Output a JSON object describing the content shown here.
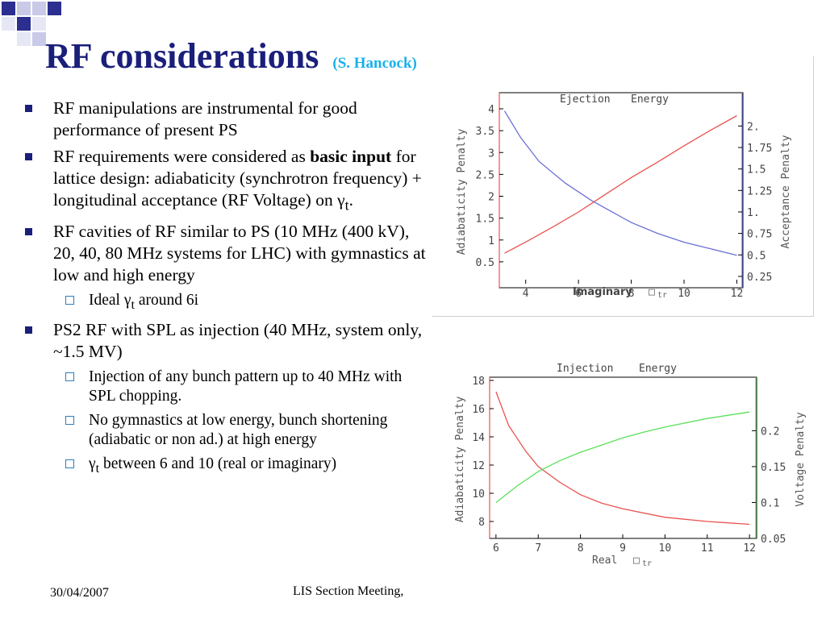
{
  "slide": {
    "title": "RF considerations",
    "title_note": "(S. Hancock)",
    "bullets": [
      {
        "text": "RF manipulations are instrumental for good performance of present PS"
      },
      {
        "pre": "RF requirements were considered as ",
        "bold": "basic input",
        "post": " for lattice design: adiabaticity (synchrotron frequency) + longitudinal acceptance (RF Voltage) on γ",
        "sub": "t",
        "tail": "."
      },
      {
        "text": "RF cavities of RF similar to PS (10 MHz (400 kV), 20, 40, 80 MHz systems for LHC) with gymnastics at low and high energy"
      },
      {
        "pre": "Ideal γ",
        "sub": "t",
        "post": " around 6i"
      },
      {
        "text": "PS2 RF with SPL as injection (40 MHz, system only, ~1.5 MV)"
      },
      {
        "text": "Injection of any bunch pattern up to 40 MHz with SPL chopping."
      },
      {
        "text": "No gymnastics at low energy, bunch shortening (adiabatic or non ad.) at high energy"
      },
      {
        "pre": "γ",
        "sub": "t",
        "post": " between 6 and 10 (real or imaginary)"
      }
    ]
  },
  "footer": {
    "date": "30/04/2007",
    "event": "LIS Section Meeting,"
  },
  "colors": {
    "title": "#1a1f7a",
    "subtitle": "#1ab0e8",
    "red_series": "#e8524f",
    "blue_series": "#6a6fd6",
    "green_series": "#5ae05a"
  },
  "chart_data": [
    {
      "type": "line",
      "title_words": [
        "Ejection",
        "Energy"
      ],
      "xlabel": "Imaginary",
      "xlabel_symbol": "□",
      "xlabel_sub": "tr",
      "ylabel_left": "Adiabaticity Penalty",
      "ylabel_right": "Acceptance Penalty",
      "xlim": [
        3,
        12.2
      ],
      "ylim_left": [
        0,
        4
      ],
      "ylim_right": [
        0.165,
        2.2
      ],
      "x_ticks": [
        4,
        6,
        8,
        10,
        12
      ],
      "y_ticks_left": [
        "0.5",
        "1",
        "1.5",
        "2",
        "2.5",
        "3",
        "3.5",
        "4"
      ],
      "y_ticks_right": [
        "0.25",
        "0.5",
        "0.75",
        "1.",
        "1.25",
        "1.5",
        "1.75",
        "2."
      ],
      "series": [
        {
          "axis": "left",
          "color": "#6a6fd6",
          "x": [
            3.2,
            3.8,
            4.5,
            5.5,
            6.5,
            8,
            9,
            10,
            11,
            12
          ],
          "y": [
            3.95,
            3.35,
            2.8,
            2.3,
            1.9,
            1.4,
            1.15,
            0.95,
            0.8,
            0.65
          ]
        },
        {
          "axis": "right",
          "color": "#e8524f",
          "x": [
            3.2,
            4,
            5,
            6,
            7,
            8,
            9,
            10,
            11,
            12
          ],
          "y": [
            0.52,
            0.65,
            0.82,
            1.0,
            1.2,
            1.4,
            1.58,
            1.77,
            1.95,
            2.12
          ]
        }
      ]
    },
    {
      "type": "line",
      "title_words": [
        "Injection",
        "Energy"
      ],
      "xlabel": "Real",
      "xlabel_symbol": "□",
      "xlabel_sub": "tr",
      "ylabel_left": "Adiabaticity Penalty",
      "ylabel_right": "Voltage Penalty",
      "xlim": [
        5.85,
        12.15
      ],
      "ylim_left": [
        6.8,
        18
      ],
      "ylim_right": [
        0.05,
        0.27
      ],
      "x_ticks": [
        6,
        7,
        8,
        9,
        10,
        11,
        12
      ],
      "y_ticks_left": [
        "8",
        "10",
        "12",
        "14",
        "16",
        "18"
      ],
      "y_ticks_right": [
        "0.05",
        "0.1",
        "0.15",
        "0.2"
      ],
      "series": [
        {
          "axis": "left",
          "color": "#e8524f",
          "x": [
            6,
            6.3,
            6.7,
            7,
            7.5,
            8,
            8.5,
            9,
            10,
            11,
            12
          ],
          "y": [
            17.2,
            14.8,
            13.0,
            11.9,
            10.8,
            9.9,
            9.3,
            8.9,
            8.3,
            8.0,
            7.8
          ]
        },
        {
          "axis": "right",
          "color": "#5ae05a",
          "x": [
            6,
            6.5,
            7,
            7.5,
            8,
            8.5,
            9,
            9.5,
            10,
            11,
            12
          ],
          "y": [
            0.1,
            0.123,
            0.143,
            0.158,
            0.17,
            0.18,
            0.19,
            0.198,
            0.205,
            0.217,
            0.226
          ]
        }
      ]
    }
  ]
}
